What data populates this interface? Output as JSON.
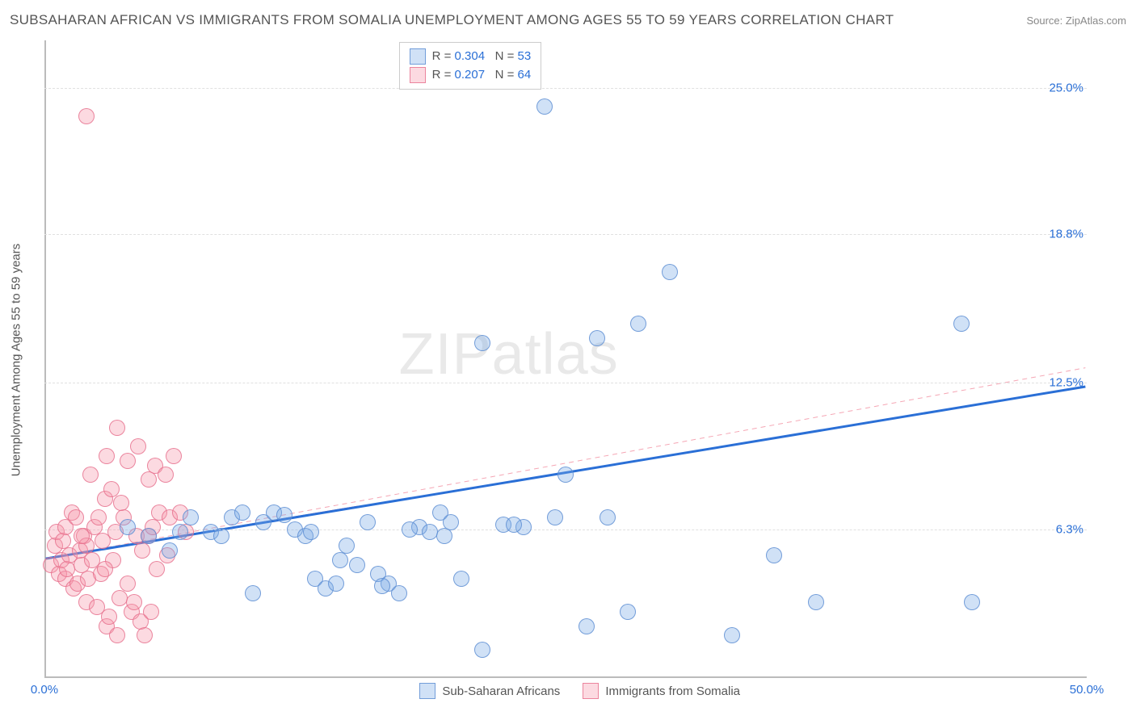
{
  "header": {
    "title": "SUBSAHARAN AFRICAN VS IMMIGRANTS FROM SOMALIA UNEMPLOYMENT AMONG AGES 55 TO 59 YEARS CORRELATION CHART",
    "source_label": "Source: ",
    "source_name": "ZipAtlas.com"
  },
  "chart": {
    "type": "scatter",
    "y_axis_title": "Unemployment Among Ages 55 to 59 years",
    "background_color": "#ffffff",
    "grid_color": "#e0e0e0",
    "axis_color": "#bbbbbb",
    "xlim": [
      0,
      50
    ],
    "ylim": [
      0,
      27
    ],
    "x_ticks": [
      {
        "value": 0,
        "label": "0.0%",
        "color": "#2a6fd6"
      },
      {
        "value": 50,
        "label": "50.0%",
        "color": "#2a6fd6"
      }
    ],
    "y_ticks": [
      {
        "value": 6.3,
        "label": "6.3%",
        "color": "#2a6fd6"
      },
      {
        "value": 12.5,
        "label": "12.5%",
        "color": "#2a6fd6"
      },
      {
        "value": 18.8,
        "label": "18.8%",
        "color": "#2a6fd6"
      },
      {
        "value": 25.0,
        "label": "25.0%",
        "color": "#2a6fd6"
      }
    ],
    "watermark": {
      "text_a": "ZIP",
      "text_b": "atlas"
    },
    "series": [
      {
        "key": "ssa",
        "label": "Sub-Saharan Africans",
        "fill": "rgba(120,170,230,0.35)",
        "stroke": "rgba(90,140,210,0.8)",
        "marker_radius": 10,
        "r": 0.304,
        "n": 53,
        "trend": {
          "x1": 0,
          "y1": 5.0,
          "x2": 50,
          "y2": 12.3,
          "color": "#2a6fd6",
          "width": 3,
          "dash": "none"
        },
        "trend_ext": {
          "x1": 0,
          "y1": 5.0,
          "x2": 50,
          "y2": 13.1,
          "color": "#f5a6b4",
          "width": 1,
          "dash": "6,5"
        },
        "points": [
          [
            4,
            6.4
          ],
          [
            5,
            6.0
          ],
          [
            6,
            5.4
          ],
          [
            7,
            6.8
          ],
          [
            8,
            6.2
          ],
          [
            9,
            6.8
          ],
          [
            10,
            3.6
          ],
          [
            10.5,
            6.6
          ],
          [
            11,
            7.0
          ],
          [
            12,
            6.3
          ],
          [
            12.5,
            6.0
          ],
          [
            13,
            4.2
          ],
          [
            13.5,
            3.8
          ],
          [
            14,
            4.0
          ],
          [
            14.5,
            5.6
          ],
          [
            15,
            4.8
          ],
          [
            15.5,
            6.6
          ],
          [
            16,
            4.4
          ],
          [
            16.5,
            4.0
          ],
          [
            17,
            3.6
          ],
          [
            18,
            6.4
          ],
          [
            18.5,
            6.2
          ],
          [
            19,
            7.0
          ],
          [
            19.5,
            6.6
          ],
          [
            20,
            4.2
          ],
          [
            21,
            1.2
          ],
          [
            21,
            14.2
          ],
          [
            22,
            6.5
          ],
          [
            23,
            6.4
          ],
          [
            24,
            24.2
          ],
          [
            24.5,
            6.8
          ],
          [
            25,
            8.6
          ],
          [
            26,
            2.2
          ],
          [
            26.5,
            14.4
          ],
          [
            27,
            6.8
          ],
          [
            28,
            2.8
          ],
          [
            28.5,
            15.0
          ],
          [
            33,
            1.8
          ],
          [
            35,
            5.2
          ],
          [
            44,
            15.0
          ],
          [
            44.5,
            3.2
          ],
          [
            30,
            17.2
          ],
          [
            37,
            3.2
          ],
          [
            11.5,
            6.9
          ],
          [
            12.8,
            6.2
          ],
          [
            14.2,
            5.0
          ],
          [
            16.2,
            3.9
          ],
          [
            17.5,
            6.3
          ],
          [
            19.2,
            6.0
          ],
          [
            22.5,
            6.5
          ],
          [
            9.5,
            7.0
          ],
          [
            8.5,
            6.0
          ],
          [
            6.5,
            6.2
          ]
        ]
      },
      {
        "key": "somalia",
        "label": "Immigrants from Somalia",
        "fill": "rgba(245,150,170,0.35)",
        "stroke": "rgba(230,110,140,0.8)",
        "marker_radius": 10,
        "r": 0.207,
        "n": 64,
        "trend": {
          "x1": 0,
          "y1": 5.0,
          "x2": 15,
          "y2": 7.2,
          "color": "#e05a7a",
          "width": 2.5,
          "dash": "none"
        },
        "points": [
          [
            0.3,
            4.8
          ],
          [
            0.5,
            5.6
          ],
          [
            0.6,
            6.2
          ],
          [
            0.7,
            4.4
          ],
          [
            0.8,
            5.0
          ],
          [
            0.9,
            5.8
          ],
          [
            1.0,
            4.2
          ],
          [
            1.0,
            6.4
          ],
          [
            1.1,
            4.6
          ],
          [
            1.2,
            5.2
          ],
          [
            1.3,
            7.0
          ],
          [
            1.4,
            3.8
          ],
          [
            1.5,
            6.8
          ],
          [
            1.6,
            4.0
          ],
          [
            1.7,
            5.4
          ],
          [
            1.8,
            4.8
          ],
          [
            1.9,
            6.0
          ],
          [
            2.0,
            5.6
          ],
          [
            2.0,
            3.2
          ],
          [
            2.1,
            4.2
          ],
          [
            2.2,
            8.6
          ],
          [
            2.3,
            5.0
          ],
          [
            2.4,
            6.4
          ],
          [
            2.5,
            3.0
          ],
          [
            2.6,
            6.8
          ],
          [
            2.7,
            4.4
          ],
          [
            2.8,
            5.8
          ],
          [
            2.9,
            7.6
          ],
          [
            3.0,
            2.2
          ],
          [
            3.0,
            9.4
          ],
          [
            3.2,
            8.0
          ],
          [
            3.3,
            5.0
          ],
          [
            3.4,
            6.2
          ],
          [
            3.5,
            1.8
          ],
          [
            3.5,
            10.6
          ],
          [
            3.8,
            6.8
          ],
          [
            4.0,
            4.0
          ],
          [
            4.0,
            9.2
          ],
          [
            4.2,
            2.8
          ],
          [
            4.4,
            6.0
          ],
          [
            4.5,
            9.8
          ],
          [
            4.6,
            2.4
          ],
          [
            4.8,
            1.8
          ],
          [
            5.0,
            8.4
          ],
          [
            5.0,
            6.0
          ],
          [
            5.2,
            6.4
          ],
          [
            5.3,
            9.0
          ],
          [
            5.5,
            7.0
          ],
          [
            5.8,
            8.6
          ],
          [
            6.0,
            6.8
          ],
          [
            6.2,
            9.4
          ],
          [
            6.5,
            7.0
          ],
          [
            6.8,
            6.2
          ],
          [
            3.1,
            2.6
          ],
          [
            3.6,
            3.4
          ],
          [
            4.3,
            3.2
          ],
          [
            4.7,
            5.4
          ],
          [
            5.1,
            2.8
          ],
          [
            5.4,
            4.6
          ],
          [
            5.9,
            5.2
          ],
          [
            2.0,
            23.8
          ],
          [
            1.8,
            6.0
          ],
          [
            2.9,
            4.6
          ],
          [
            3.7,
            7.4
          ]
        ]
      }
    ],
    "legend_top": {
      "r_label": "R =",
      "n_label": "N =",
      "value_color": "#2a6fd6",
      "label_color": "#555555"
    },
    "legend_bottom": {
      "label_color": "#555555"
    }
  }
}
